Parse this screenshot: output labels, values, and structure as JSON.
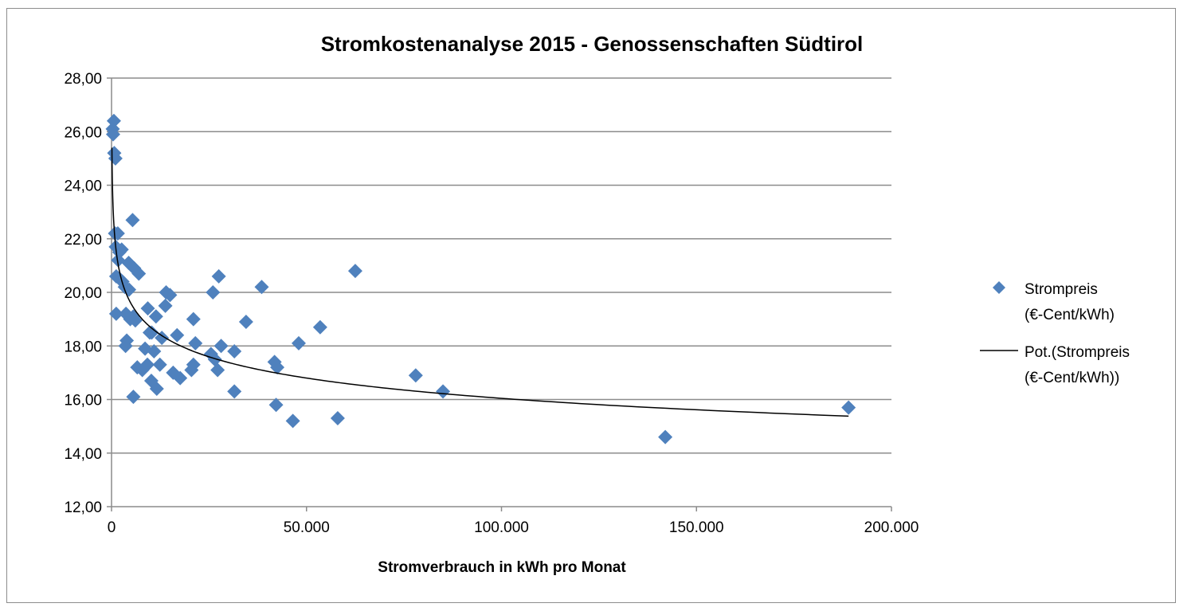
{
  "chart_data": {
    "type": "scatter",
    "title": "Stromkostenanalyse 2015 - Genossenschaften Südtirol",
    "xlabel": "Stromverbrauch in kWh pro Monat",
    "ylabel": "",
    "xlim": [
      0,
      200000
    ],
    "ylim": [
      12,
      28
    ],
    "x_ticks": [
      0,
      50000,
      100000,
      150000,
      200000
    ],
    "x_tick_labels": [
      "0",
      "50.000",
      "100.000",
      "150.000",
      "200.000"
    ],
    "y_ticks": [
      12,
      14,
      16,
      18,
      20,
      22,
      24,
      26,
      28
    ],
    "y_tick_labels": [
      "12,00",
      "14,00",
      "16,00",
      "18,00",
      "20,00",
      "22,00",
      "24,00",
      "26,00",
      "28,00"
    ],
    "grid": "horizontal",
    "legend_position": "right",
    "series": [
      {
        "name": "Strompreis (€-Cent/kWh)",
        "legend_lines": [
          "Strompreis",
          "(€-Cent/kWh)"
        ],
        "marker": "diamond",
        "color": "#4f81bd",
        "points": [
          [
            600,
            26.4
          ],
          [
            300,
            26.1
          ],
          [
            400,
            25.9
          ],
          [
            700,
            25.2
          ],
          [
            1000,
            25.0
          ],
          [
            900,
            22.2
          ],
          [
            1600,
            22.2
          ],
          [
            1100,
            21.7
          ],
          [
            2000,
            21.5
          ],
          [
            2600,
            21.6
          ],
          [
            1700,
            21.2
          ],
          [
            5400,
            22.7
          ],
          [
            4400,
            21.1
          ],
          [
            5800,
            20.9
          ],
          [
            7000,
            20.7
          ],
          [
            1200,
            20.6
          ],
          [
            2100,
            20.5
          ],
          [
            2800,
            20.4
          ],
          [
            3400,
            20.2
          ],
          [
            4500,
            20.1
          ],
          [
            1200,
            19.2
          ],
          [
            3700,
            19.2
          ],
          [
            4800,
            19.0
          ],
          [
            5600,
            19.1
          ],
          [
            6100,
            18.95
          ],
          [
            9300,
            19.4
          ],
          [
            9800,
            18.5
          ],
          [
            10300,
            18.5
          ],
          [
            11400,
            19.1
          ],
          [
            14000,
            20.0
          ],
          [
            15000,
            19.9
          ],
          [
            13800,
            19.5
          ],
          [
            12900,
            18.3
          ],
          [
            16800,
            18.4
          ],
          [
            21000,
            19.0
          ],
          [
            26000,
            20.0
          ],
          [
            27500,
            20.6
          ],
          [
            38500,
            20.2
          ],
          [
            62500,
            20.8
          ],
          [
            3600,
            18.0
          ],
          [
            3900,
            18.2
          ],
          [
            8600,
            17.9
          ],
          [
            10900,
            17.8
          ],
          [
            9200,
            17.3
          ],
          [
            10200,
            16.7
          ],
          [
            11600,
            16.4
          ],
          [
            6600,
            17.2
          ],
          [
            7900,
            17.1
          ],
          [
            12400,
            17.3
          ],
          [
            5600,
            16.1
          ],
          [
            15800,
            17.0
          ],
          [
            17600,
            16.8
          ],
          [
            20500,
            17.1
          ],
          [
            21000,
            17.3
          ],
          [
            21500,
            18.1
          ],
          [
            25500,
            17.7
          ],
          [
            26500,
            17.5
          ],
          [
            27200,
            17.1
          ],
          [
            28100,
            18.0
          ],
          [
            31500,
            17.8
          ],
          [
            31500,
            16.3
          ],
          [
            34500,
            18.9
          ],
          [
            41800,
            17.4
          ],
          [
            42500,
            17.2
          ],
          [
            42200,
            15.8
          ],
          [
            46500,
            15.2
          ],
          [
            48000,
            18.1
          ],
          [
            53500,
            18.7
          ],
          [
            58000,
            15.3
          ],
          [
            78000,
            16.9
          ],
          [
            85000,
            16.3
          ],
          [
            142000,
            14.6
          ],
          [
            189000,
            15.7
          ]
        ]
      },
      {
        "name": "Pot.(Strompreis (€-Cent/kWh))",
        "legend_lines": [
          "Pot.(Strompreis",
          "(€-Cent/kWh))"
        ],
        "type": "trendline-power",
        "color": "#000000",
        "coefficient_a": 34.5,
        "exponent_b": -0.0665,
        "x_range": [
          100,
          189000
        ]
      }
    ]
  }
}
